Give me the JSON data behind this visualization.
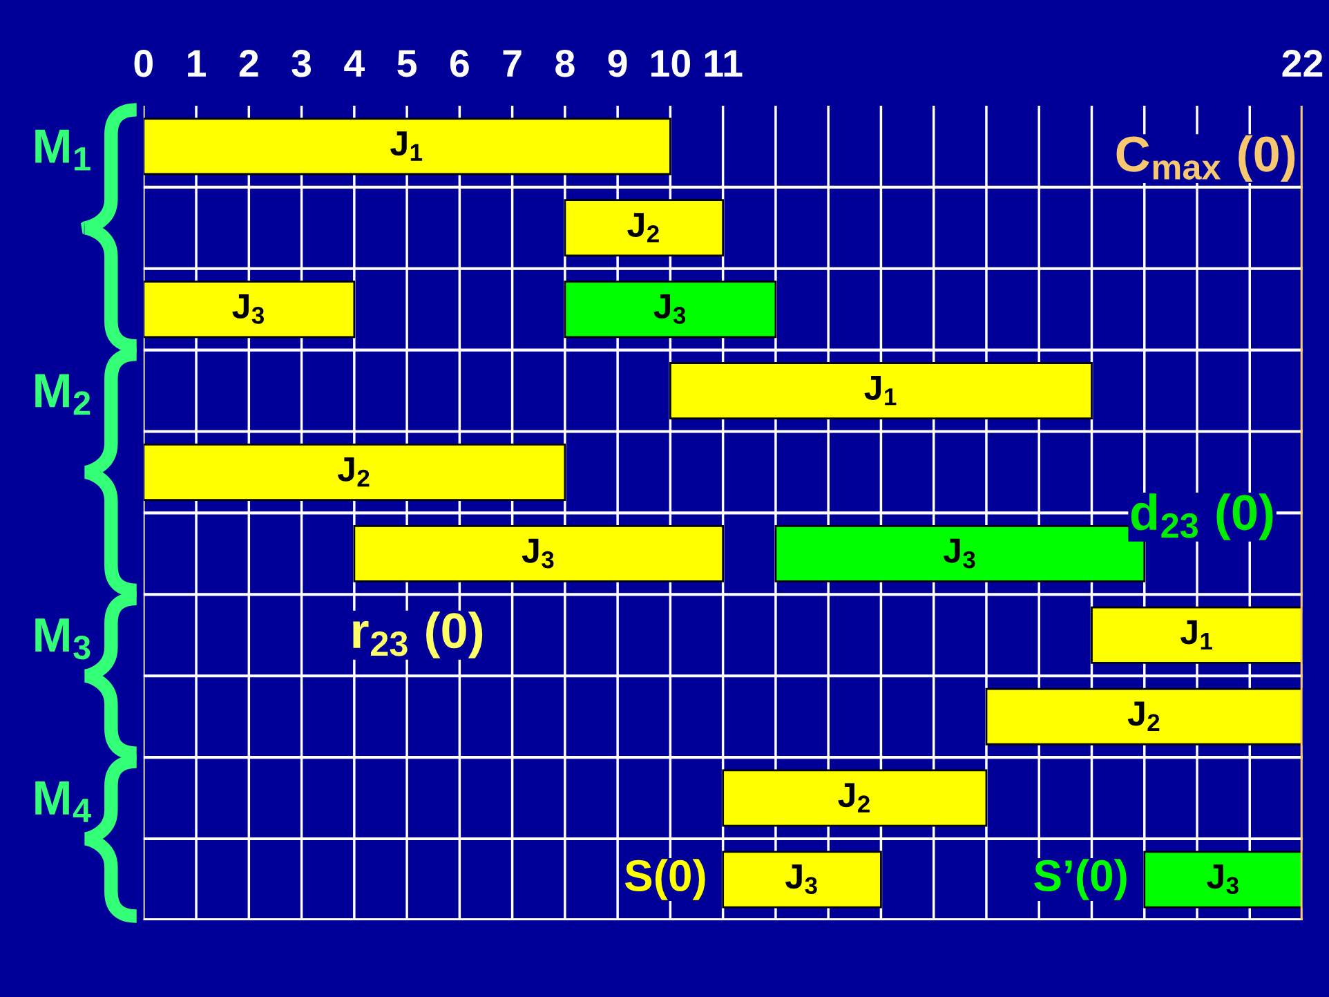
{
  "chart_data": {
    "type": "bar",
    "orientation": "horizontal",
    "categories": [
      "J$_{1}$",
      "J$_{2}$",
      "J$_{3}$",
      "J$_{1}$",
      "J$_{2}$",
      "J$_{3}$",
      "J$_{1}$",
      "J$_{2}$",
      "J$_{2}$",
      "J$_{3}$"
    ],
    "series": [
      {
        "name": "S(0)",
        "color": "#ffff00",
        "base": [
          0,
          8,
          0,
          10,
          0,
          4,
          18,
          16,
          11,
          11
        ],
        "values": [
          10,
          3,
          4,
          8,
          8,
          7,
          4,
          6,
          5,
          3
        ]
      },
      {
        "name": "S’(0)",
        "color": "#00ff00",
        "base": [
          null,
          null,
          8,
          null,
          null,
          12,
          null,
          null,
          null,
          19
        ],
        "values": [
          null,
          null,
          4,
          null,
          null,
          7,
          null,
          null,
          null,
          3
        ]
      }
    ],
    "xlim": [
      0,
      22
    ],
    "xticks": [
      0,
      1,
      2,
      3,
      4,
      5,
      6,
      7,
      8,
      9,
      10,
      11,
      {
        "value": 12,
        "label": null
      },
      {
        "value": 13,
        "label": null
      },
      {
        "value": 14,
        "label": null
      },
      {
        "value": 15,
        "label": null
      },
      {
        "value": 16,
        "label": null
      },
      {
        "value": 17,
        "label": null
      },
      {
        "value": 18,
        "label": null
      },
      {
        "value": 19,
        "label": null
      },
      {
        "value": 20,
        "label": null
      },
      {
        "value": 21,
        "label": null
      },
      22
    ],
    "ref_lines": [
      {
        "axis": "x",
        "value": 22,
        "label": "C$_{max}$ (0)",
        "color": "#f8c870"
      }
    ],
    "annotations": [
      "M$_{1}$",
      "M$_{2}$",
      "M$_{3}$",
      "M$_{4}$",
      "r$_{23}$ (0)",
      "d$_{23}$ (0)"
    ],
    "grid": true,
    "legend": false
  }
}
